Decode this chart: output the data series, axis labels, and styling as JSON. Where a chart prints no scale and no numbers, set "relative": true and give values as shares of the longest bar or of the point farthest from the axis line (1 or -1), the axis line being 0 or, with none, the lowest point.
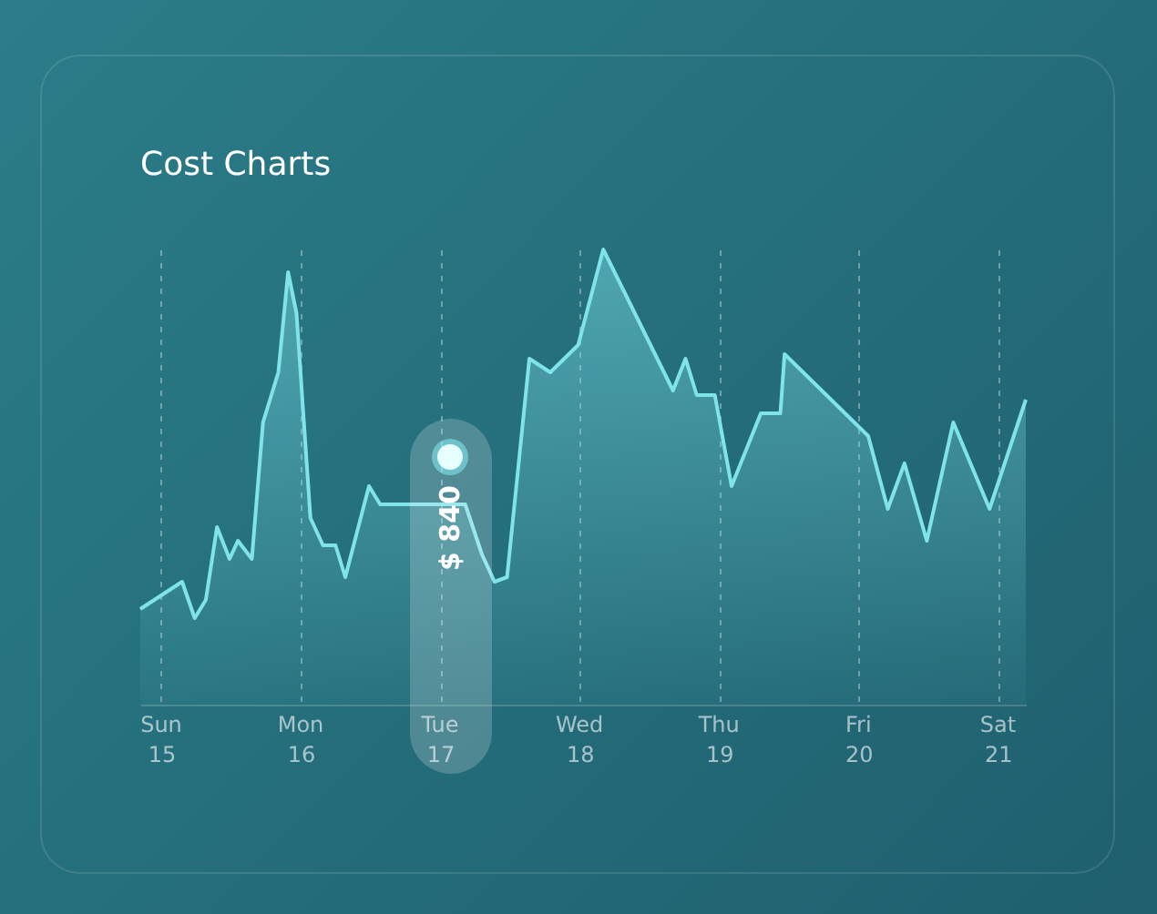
{
  "chart_data": {
    "type": "area",
    "title": "Cost Charts",
    "relative": true,
    "x": [
      14.85,
      15.15,
      15.24,
      15.32,
      15.4,
      15.49,
      15.55,
      15.65,
      15.73,
      15.84,
      15.91,
      15.97,
      16.07,
      16.16,
      16.25,
      16.32,
      16.49,
      16.57,
      16.69,
      17.18,
      17.3,
      17.39,
      17.48,
      17.64,
      17.79,
      17.99,
      18.17,
      18.67,
      18.76,
      18.84,
      18.97,
      19.09,
      19.3,
      19.44,
      19.47,
      20.07,
      20.21,
      20.33,
      20.49,
      20.68,
      20.94,
      21.2
    ],
    "series": [
      {
        "color": "#7fe3ea",
        "values": [
          0.21,
          0.27,
          0.19,
          0.23,
          0.39,
          0.32,
          0.36,
          0.32,
          0.62,
          0.73,
          0.95,
          0.86,
          0.41,
          0.35,
          0.35,
          0.28,
          0.48,
          0.44,
          0.44,
          0.44,
          0.33,
          0.27,
          0.28,
          0.76,
          0.73,
          0.79,
          1,
          0.69,
          0.76,
          0.68,
          0.68,
          0.48,
          0.64,
          0.64,
          0.77,
          0.59,
          0.43,
          0.53,
          0.36,
          0.62,
          0.43,
          0.67
        ]
      }
    ],
    "xlim": [
      14.85,
      21.2
    ],
    "xticks": [
      15,
      16,
      17,
      18,
      19,
      20,
      21
    ],
    "grid": "x",
    "line_style": "solid",
    "marker": "none",
    "annotations": [
      "$ 840",
      "Sun",
      "Mon",
      "Tue",
      "Wed",
      "Thu",
      "Fri",
      "Sat"
    ]
  }
}
